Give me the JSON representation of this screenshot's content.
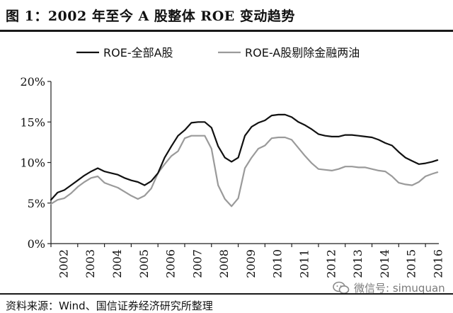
{
  "title": "图 1：2002 年至今 A 股整体 ROE 变动趋势",
  "source": "资料来源：Wind、国信证券经济研究所整理",
  "watermark": {
    "text": "微信号: simuquan",
    "icon": "wechat-icon"
  },
  "colors": {
    "total": "#111111",
    "excl_fin": "#9a9a9a",
    "axis": "#222222"
  },
  "chart_data": {
    "type": "line",
    "title": "",
    "xlabel": "",
    "ylabel": "",
    "ylim": [
      0,
      20
    ],
    "xlim": [
      2002,
      2016.5
    ],
    "yticks": [
      "0%",
      "5%",
      "10%",
      "15%",
      "20%"
    ],
    "xticks": [
      "2002",
      "2003",
      "2004",
      "2005",
      "2006",
      "2007",
      "2008",
      "2009",
      "2010",
      "2011",
      "2012",
      "2013",
      "2014",
      "2015",
      "2016"
    ],
    "legend_position": "top",
    "series": [
      {
        "name": "ROE-全部A股",
        "points": [
          [
            2002.0,
            5.4
          ],
          [
            2002.25,
            6.3
          ],
          [
            2002.5,
            6.6
          ],
          [
            2002.75,
            7.2
          ],
          [
            2003.0,
            7.8
          ],
          [
            2003.25,
            8.4
          ],
          [
            2003.5,
            8.9
          ],
          [
            2003.75,
            9.3
          ],
          [
            2004.0,
            8.9
          ],
          [
            2004.25,
            8.7
          ],
          [
            2004.5,
            8.5
          ],
          [
            2004.75,
            8.1
          ],
          [
            2005.0,
            7.8
          ],
          [
            2005.25,
            7.6
          ],
          [
            2005.5,
            7.2
          ],
          [
            2005.75,
            7.7
          ],
          [
            2006.0,
            8.7
          ],
          [
            2006.25,
            10.6
          ],
          [
            2006.5,
            12.0
          ],
          [
            2006.75,
            13.3
          ],
          [
            2007.0,
            14.0
          ],
          [
            2007.25,
            14.9
          ],
          [
            2007.5,
            15.0
          ],
          [
            2007.75,
            15.0
          ],
          [
            2008.0,
            14.3
          ],
          [
            2008.25,
            12.0
          ],
          [
            2008.5,
            10.6
          ],
          [
            2008.75,
            10.1
          ],
          [
            2009.0,
            10.6
          ],
          [
            2009.25,
            13.3
          ],
          [
            2009.5,
            14.4
          ],
          [
            2009.75,
            14.9
          ],
          [
            2010.0,
            15.2
          ],
          [
            2010.25,
            15.8
          ],
          [
            2010.5,
            15.9
          ],
          [
            2010.75,
            15.9
          ],
          [
            2011.0,
            15.6
          ],
          [
            2011.25,
            15.0
          ],
          [
            2011.5,
            14.6
          ],
          [
            2011.75,
            14.1
          ],
          [
            2012.0,
            13.5
          ],
          [
            2012.25,
            13.3
          ],
          [
            2012.5,
            13.2
          ],
          [
            2012.75,
            13.2
          ],
          [
            2013.0,
            13.4
          ],
          [
            2013.25,
            13.4
          ],
          [
            2013.5,
            13.3
          ],
          [
            2013.75,
            13.2
          ],
          [
            2014.0,
            13.1
          ],
          [
            2014.25,
            12.8
          ],
          [
            2014.5,
            12.4
          ],
          [
            2014.75,
            12.1
          ],
          [
            2015.0,
            11.3
          ],
          [
            2015.25,
            10.6
          ],
          [
            2015.5,
            10.2
          ],
          [
            2015.75,
            9.8
          ],
          [
            2016.0,
            9.9
          ],
          [
            2016.25,
            10.1
          ],
          [
            2016.45,
            10.3
          ]
        ]
      },
      {
        "name": "ROE-A股剔除金融两油",
        "points": [
          [
            2002.0,
            4.9
          ],
          [
            2002.25,
            5.4
          ],
          [
            2002.5,
            5.6
          ],
          [
            2002.75,
            6.2
          ],
          [
            2003.0,
            7.0
          ],
          [
            2003.25,
            7.6
          ],
          [
            2003.5,
            8.1
          ],
          [
            2003.75,
            8.3
          ],
          [
            2004.0,
            7.5
          ],
          [
            2004.25,
            7.2
          ],
          [
            2004.5,
            6.9
          ],
          [
            2004.75,
            6.4
          ],
          [
            2005.0,
            5.9
          ],
          [
            2005.25,
            5.5
          ],
          [
            2005.5,
            5.9
          ],
          [
            2005.75,
            6.8
          ],
          [
            2006.0,
            8.7
          ],
          [
            2006.25,
            9.8
          ],
          [
            2006.5,
            10.8
          ],
          [
            2006.75,
            11.4
          ],
          [
            2007.0,
            13.0
          ],
          [
            2007.25,
            13.3
          ],
          [
            2007.5,
            13.3
          ],
          [
            2007.75,
            13.3
          ],
          [
            2008.0,
            11.7
          ],
          [
            2008.25,
            7.2
          ],
          [
            2008.5,
            5.5
          ],
          [
            2008.75,
            4.6
          ],
          [
            2009.0,
            5.6
          ],
          [
            2009.25,
            9.3
          ],
          [
            2009.5,
            10.6
          ],
          [
            2009.75,
            11.7
          ],
          [
            2010.0,
            12.1
          ],
          [
            2010.25,
            13.0
          ],
          [
            2010.5,
            13.1
          ],
          [
            2010.75,
            13.1
          ],
          [
            2011.0,
            12.8
          ],
          [
            2011.25,
            11.8
          ],
          [
            2011.5,
            10.8
          ],
          [
            2011.75,
            9.9
          ],
          [
            2012.0,
            9.2
          ],
          [
            2012.25,
            9.1
          ],
          [
            2012.5,
            9.0
          ],
          [
            2012.75,
            9.2
          ],
          [
            2013.0,
            9.5
          ],
          [
            2013.25,
            9.5
          ],
          [
            2013.5,
            9.4
          ],
          [
            2013.75,
            9.4
          ],
          [
            2014.0,
            9.2
          ],
          [
            2014.25,
            9.0
          ],
          [
            2014.5,
            8.9
          ],
          [
            2014.75,
            8.3
          ],
          [
            2015.0,
            7.5
          ],
          [
            2015.25,
            7.3
          ],
          [
            2015.5,
            7.2
          ],
          [
            2015.75,
            7.6
          ],
          [
            2016.0,
            8.3
          ],
          [
            2016.25,
            8.6
          ],
          [
            2016.45,
            8.8
          ]
        ]
      }
    ]
  }
}
